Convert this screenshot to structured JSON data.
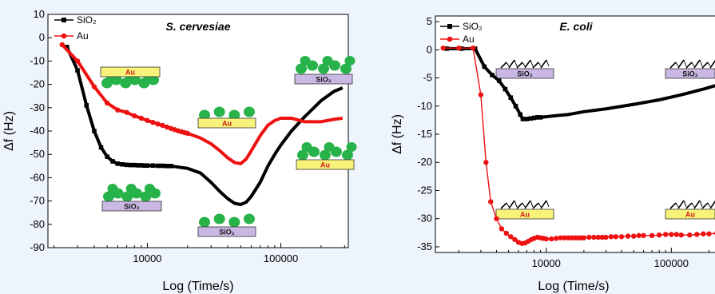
{
  "chart_data": [
    {
      "type": "line",
      "title": "S. cervesiae",
      "xlabel": "Log (Time/s)",
      "ylabel": "Δf (Hz)",
      "xscale": "log",
      "xlim": [
        1800,
        320000
      ],
      "ylim": [
        -90,
        10
      ],
      "yticks": [
        10,
        0,
        -10,
        -20,
        -30,
        -40,
        -50,
        -60,
        -70,
        -80,
        -90
      ],
      "xticks": [
        10000,
        100000
      ],
      "xticklabels": [
        "10000",
        "100000"
      ],
      "legend": "top-left",
      "grid": false,
      "series": [
        {
          "name": "SiO₂",
          "color": "#000000",
          "marker": "square",
          "x": [
            2500,
            3000,
            3500,
            4000,
            4500,
            5000,
            5500,
            6000,
            6500,
            7000,
            7500,
            8000,
            8500,
            9000,
            9500,
            10000,
            11000,
            12000,
            13000,
            14000,
            15000
          ],
          "y": [
            -4,
            -14,
            -29,
            -40,
            -47,
            -51,
            -53,
            -54,
            -54.3,
            -54.5,
            -54.6,
            -54.6,
            -54.7,
            -54.7,
            -54.8,
            -54.8,
            -54.8,
            -54.9,
            -54.9,
            -55,
            -55
          ],
          "curve_x": [
            15000,
            20000,
            25000,
            30000,
            35000,
            40000,
            45000,
            50000,
            55000,
            60000,
            70000,
            80000,
            90000,
            100000,
            120000,
            150000,
            200000,
            250000,
            290000
          ],
          "curve_y": [
            -55,
            -56,
            -58,
            -62,
            -66,
            -69,
            -71,
            -71.5,
            -70.5,
            -68,
            -62,
            -55,
            -50,
            -46,
            -40,
            -34,
            -27,
            -23,
            -21.5
          ]
        },
        {
          "name": "Au",
          "color": "#ee1111",
          "marker": "circle",
          "x": [
            2300,
            3000,
            4000,
            5000,
            6000,
            7000,
            8000,
            9000,
            10000,
            11000,
            12000,
            13000,
            14000,
            15000,
            16000,
            17000,
            18000,
            19000,
            20000
          ],
          "y": [
            -3,
            -10,
            -21,
            -28,
            -31,
            -32,
            -33.5,
            -34.5,
            -35.5,
            -36.3,
            -37,
            -37.6,
            -38.3,
            -38.9,
            -39.4,
            -39.9,
            -40.3,
            -40.7,
            -41
          ],
          "curve_x": [
            20000,
            25000,
            30000,
            35000,
            40000,
            45000,
            50000,
            55000,
            60000,
            70000,
            80000,
            90000,
            100000,
            120000,
            150000,
            200000,
            250000,
            290000
          ],
          "curve_y": [
            -41,
            -43,
            -45.5,
            -48.5,
            -51.5,
            -53.5,
            -54,
            -52,
            -48.5,
            -42,
            -37.5,
            -35.5,
            -34.5,
            -34.5,
            -36,
            -36,
            -35,
            -34.5
          ]
        }
      ],
      "insets": [
        {
          "label": "Au",
          "substrate": "Au"
        },
        {
          "label": "SiO₂",
          "substrate": "SiO2"
        },
        {
          "label": "Au",
          "substrate": "Au"
        },
        {
          "label": "SiO₂",
          "substrate": "SiO2"
        },
        {
          "label": "SiO₂",
          "substrate": "SiO2"
        },
        {
          "label": "Au",
          "substrate": "Au"
        }
      ]
    },
    {
      "type": "line",
      "title": "E. coli",
      "xlabel": "Log (Time/s)",
      "ylabel": "Δf (Hz)",
      "xscale": "log",
      "xlim": [
        1300,
        230000
      ],
      "ylim": [
        -36,
        6
      ],
      "yticks": [
        5,
        0,
        -5,
        -10,
        -15,
        -20,
        -25,
        -30,
        -35
      ],
      "xticks": [
        10000,
        100000
      ],
      "xticklabels": [
        "10000",
        "100000"
      ],
      "legend": "top-left",
      "grid": false,
      "series": [
        {
          "name": "SiO₂",
          "color": "#000000",
          "marker": "square",
          "x": [
            1600,
            2100,
            2700,
            3200,
            3700,
            4200,
            4700,
            5200,
            5700,
            6200,
            6500,
            7000,
            7500,
            8000,
            8500,
            9000
          ],
          "y": [
            0.2,
            0.2,
            0.2,
            -3,
            -4.5,
            -5.5,
            -7,
            -8.5,
            -10,
            -11.5,
            -12.3,
            -12.3,
            -12.2,
            -12.1,
            -12,
            -12
          ],
          "curve_x": [
            9000,
            12000,
            15000,
            20000,
            30000,
            50000,
            80000,
            120000,
            180000,
            230000
          ],
          "curve_y": [
            -12,
            -11.7,
            -11.5,
            -11,
            -10.5,
            -9.7,
            -8.9,
            -8,
            -7,
            -6.3
          ]
        },
        {
          "name": "Au",
          "color": "#ee1111",
          "marker": "circle",
          "x": [
            1500,
            2000,
            2600,
            3000,
            3300,
            3600,
            4000,
            4400,
            4800,
            5200,
            5600,
            6000,
            6400,
            6800,
            7200,
            7600,
            8000,
            8500,
            9000,
            9500,
            10000,
            11000,
            12000,
            13000,
            14000,
            15000,
            16000,
            17000,
            18000,
            19000,
            20000,
            22000,
            24000,
            26000,
            28000,
            30000,
            33000,
            36000,
            40000,
            45000,
            50000,
            55000,
            60000,
            70000,
            80000,
            90000,
            100000,
            110000,
            120000,
            140000,
            160000,
            180000,
            200000,
            230000
          ],
          "y": [
            0.3,
            0.3,
            0.3,
            -8,
            -20,
            -27,
            -30,
            -31.8,
            -32.6,
            -33.2,
            -33.7,
            -34.2,
            -34.4,
            -34.3,
            -34,
            -33.7,
            -33.5,
            -33.3,
            -33.4,
            -33.5,
            -33.6,
            -33.6,
            -33.5,
            -33.4,
            -33.4,
            -33.4,
            -33.4,
            -33.4,
            -33.4,
            -33.4,
            -33.4,
            -33.3,
            -33.3,
            -33.3,
            -33.3,
            -33.3,
            -33.2,
            -33.2,
            -33.2,
            -33.1,
            -33.1,
            -33,
            -33,
            -33,
            -32.9,
            -32.8,
            -32.8,
            -32.8,
            -32.9,
            -32.9,
            -32.8,
            -32.7,
            -32.7,
            -32.6
          ]
        }
      ],
      "insets": [
        {
          "label": "SiO₂",
          "substrate": "SiO2"
        },
        {
          "label": "SiO₂",
          "substrate": "SiO2"
        },
        {
          "label": "Au",
          "substrate": "Au"
        },
        {
          "label": "Au",
          "substrate": "Au"
        }
      ]
    }
  ],
  "colors": {
    "background": "#eef4fb",
    "sio2_series": "#000000",
    "au_series": "#ee1111",
    "au_substrate": "#f6f27a",
    "sio2_substrate": "#c9b8e3",
    "cell_green": "#27b34a"
  }
}
